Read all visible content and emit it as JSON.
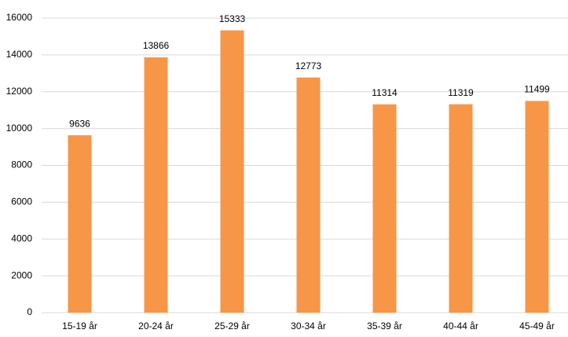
{
  "chart_data": {
    "type": "bar",
    "categories": [
      "15-19 år",
      "20-24 år",
      "25-29 år",
      "30-34 år",
      "35-39 år",
      "40-44 år",
      "45-49 år"
    ],
    "values": [
      9636,
      13866,
      15333,
      12773,
      11314,
      11319,
      11499
    ],
    "color": "#f79646",
    "ylim": [
      0,
      16000
    ],
    "yticks": [
      0,
      2000,
      4000,
      6000,
      8000,
      10000,
      12000,
      14000,
      16000
    ],
    "grid": true
  }
}
